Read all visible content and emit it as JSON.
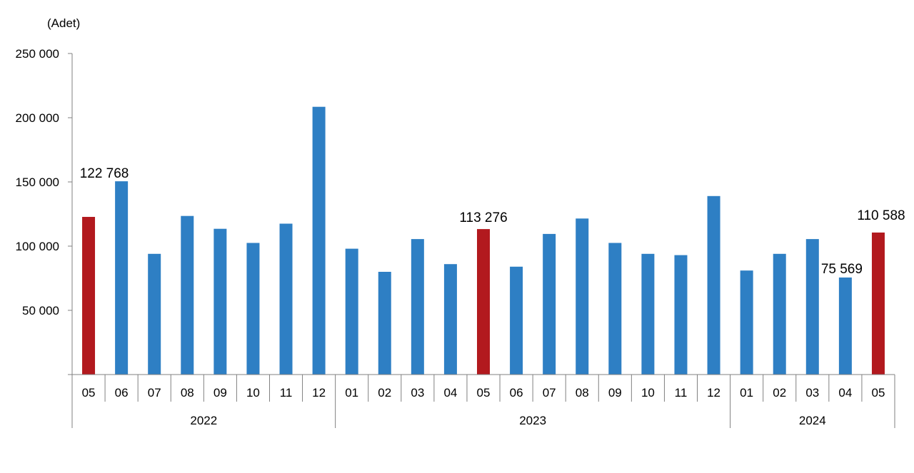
{
  "chart_data": {
    "type": "bar",
    "unit_label": "(Adet)",
    "ylim": [
      0,
      250000
    ],
    "y_ticks": [
      "250 000",
      "200 000",
      "150 000",
      "100 000",
      "50 000"
    ],
    "y_tick_values": [
      250000,
      200000,
      150000,
      100000,
      50000
    ],
    "grid": false,
    "legend": "none",
    "categories": [
      "05",
      "06",
      "07",
      "08",
      "09",
      "10",
      "11",
      "12",
      "01",
      "02",
      "03",
      "04",
      "05",
      "06",
      "07",
      "08",
      "09",
      "10",
      "11",
      "12",
      "01",
      "02",
      "03",
      "04",
      "05"
    ],
    "year_groups": [
      {
        "label": "2022",
        "count": 8
      },
      {
        "label": "2023",
        "count": 12
      },
      {
        "label": "2024",
        "count": 5
      }
    ],
    "values": [
      122768,
      150500,
      94000,
      123500,
      113500,
      102500,
      117500,
      208500,
      98000,
      80000,
      105500,
      86000,
      113276,
      84000,
      109500,
      121500,
      102500,
      94000,
      93000,
      139000,
      81000,
      94000,
      105500,
      75569,
      110588
    ],
    "highlighted_indices": [
      0,
      12,
      24
    ],
    "data_labels": [
      {
        "index": 0,
        "text": "122 768"
      },
      {
        "index": 12,
        "text": "113 276"
      },
      {
        "index": 23,
        "text": "75 569"
      },
      {
        "index": 24,
        "text": "110 588"
      }
    ],
    "colors": {
      "bar": "#2e7fc4",
      "highlight": "#b2191e",
      "axis": "#808080"
    }
  }
}
